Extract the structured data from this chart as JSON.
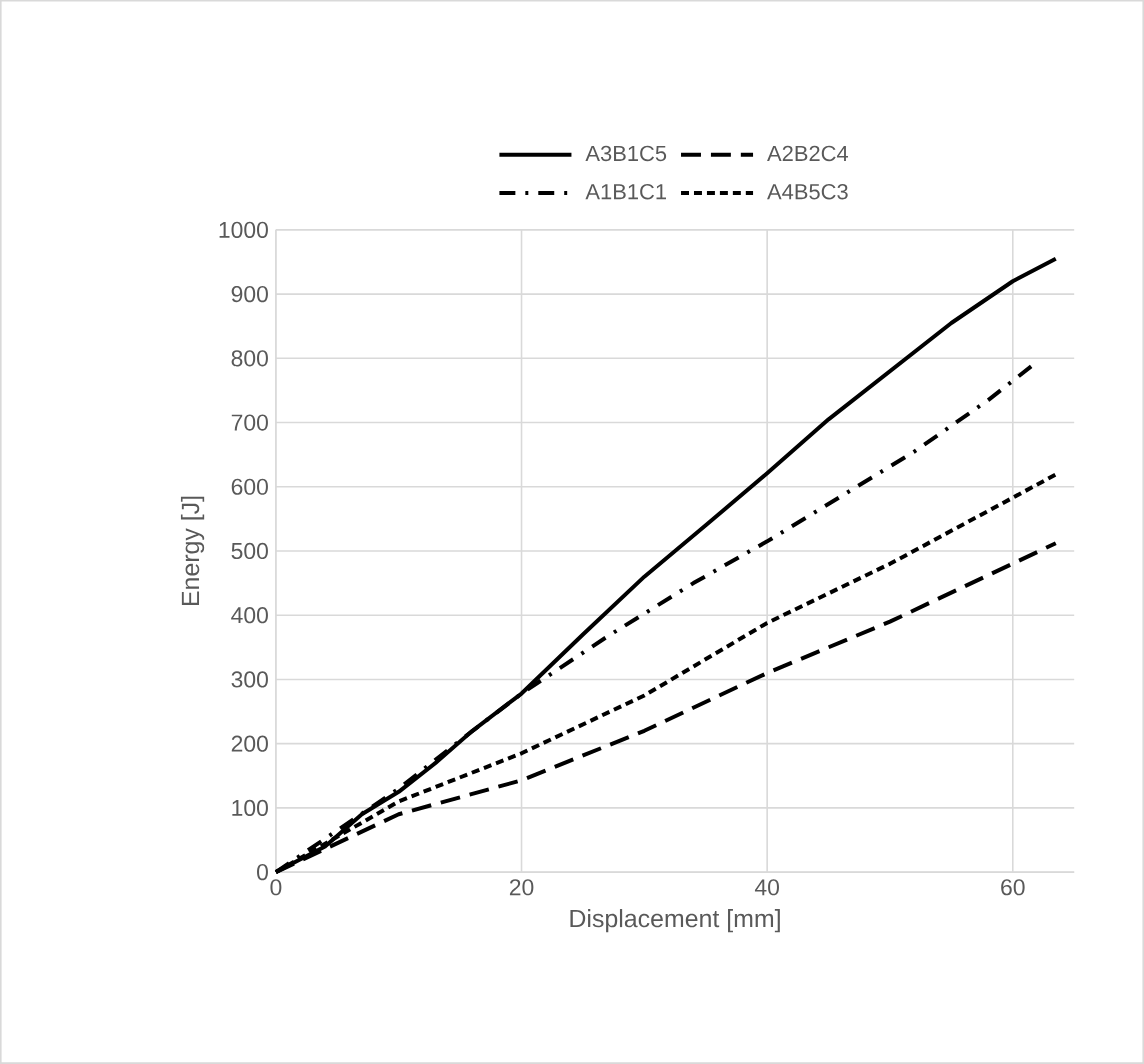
{
  "chart_data": {
    "type": "line",
    "xlabel": "Displacement [mm]",
    "ylabel": "Energy [J]",
    "xlim": [
      0,
      65
    ],
    "xticks": [
      0,
      20,
      40,
      60
    ],
    "ylim": [
      0,
      1000
    ],
    "yticks": [
      0,
      100,
      200,
      300,
      400,
      500,
      600,
      700,
      800,
      900,
      1000
    ],
    "grid": true,
    "legend": "top",
    "series": [
      {
        "name": "A3B1C5",
        "color": "#000000",
        "line_style": "solid",
        "x": [
          0,
          4,
          7,
          10,
          13,
          16,
          20,
          25,
          30,
          35,
          40,
          45,
          50,
          55,
          60,
          63.5
        ],
        "values": [
          0,
          40,
          90,
          125,
          170,
          220,
          278,
          370,
          460,
          540,
          621,
          705,
          780,
          855,
          920,
          955
        ]
      },
      {
        "name": "A2B2C4",
        "color": "#000000",
        "line_style": "dashed",
        "x": [
          0,
          10,
          20,
          30,
          40,
          50,
          63.5
        ],
        "values": [
          0,
          90,
          143,
          220,
          310,
          390,
          512
        ]
      },
      {
        "name": "A1B1C1",
        "color": "#000000",
        "line_style": "dashdot",
        "x": [
          0,
          10,
          15,
          20,
          27,
          34,
          40,
          46,
          52,
          58,
          62
        ],
        "values": [
          0,
          130,
          205,
          278,
          367,
          450,
          515,
          585,
          655,
          735,
          795
        ]
      },
      {
        "name": "A4B5C3",
        "color": "#000000",
        "line_style": "dotted",
        "x": [
          0,
          10,
          20,
          30,
          40,
          50,
          63.5
        ],
        "values": [
          0,
          110,
          185,
          275,
          388,
          480,
          619
        ]
      }
    ]
  }
}
